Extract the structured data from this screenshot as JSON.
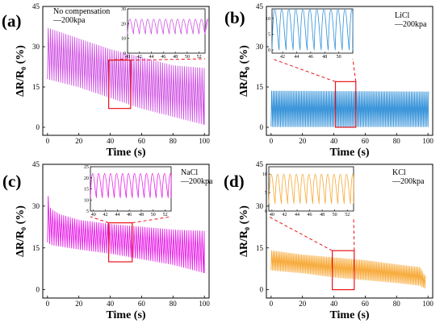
{
  "figure": {
    "panel_labels": [
      "(a)",
      "(b)",
      "(c)",
      "(d)"
    ],
    "xlabel": "Time (s)",
    "ylabel": "ΔR/R₀ (%)",
    "legends": [
      [
        "No compensation",
        "—200kpa"
      ],
      [
        "LiCl",
        "—200kpa"
      ],
      [
        "NaCl",
        "—200kpa"
      ],
      [
        "KCl",
        "—200kpa"
      ]
    ]
  },
  "chart_data": [
    {
      "type": "line",
      "label": "(a)",
      "xlabel": "Time (s)",
      "ylabel": "ΔR/R₀ (%)",
      "xlim": [
        -3,
        103
      ],
      "ylim": [
        -3,
        45
      ],
      "xticks": [
        0,
        20,
        40,
        60,
        80,
        100
      ],
      "yticks": [
        0,
        15,
        30,
        45
      ],
      "color": "#cf4fe3",
      "series": [
        {
          "name": "No compensation — 200kpa",
          "period_s": 1.4,
          "t_start": 0,
          "t_end": 100,
          "peak_profile": [
            [
              0,
              37
            ],
            [
              5,
              36
            ],
            [
              20,
              33
            ],
            [
              40,
              29
            ],
            [
              60,
              26
            ],
            [
              80,
              23
            ],
            [
              100,
              22
            ]
          ],
          "valley_profile": [
            [
              0,
              18
            ],
            [
              20,
              15
            ],
            [
              40,
              11
            ],
            [
              60,
              7
            ],
            [
              80,
              4
            ],
            [
              100,
              1
            ]
          ]
        }
      ],
      "inset": {
        "xlim": [
          40,
          53
        ],
        "ylim": [
          0,
          30
        ],
        "xticks": [
          40,
          42,
          44,
          46,
          48,
          50,
          52
        ],
        "yticks": [
          0,
          10,
          20,
          30
        ],
        "period_s": 1.0,
        "peak": 23,
        "valley": 13,
        "window": [
          40,
          53
        ]
      },
      "zoom_box": {
        "x": [
          39,
          53
        ],
        "y": [
          7,
          25
        ]
      }
    },
    {
      "type": "line",
      "label": "(b)",
      "xlabel": "Time (s)",
      "ylabel": "ΔR/R₀ (%)",
      "xlim": [
        -3,
        103
      ],
      "ylim": [
        -3,
        45
      ],
      "xticks": [
        0,
        20,
        40,
        60,
        80,
        100
      ],
      "yticks": [
        0,
        15,
        30,
        45
      ],
      "color": "#2f8fd8",
      "series": [
        {
          "name": "LiCl — 200kpa",
          "period_s": 1.0,
          "t_start": 0,
          "t_end": 100,
          "peak_profile": [
            [
              0,
              13.5
            ],
            [
              100,
              13.2
            ]
          ],
          "valley_profile": [
            [
              0,
              0.2
            ],
            [
              100,
              0.2
            ]
          ]
        }
      ],
      "inset": {
        "xlim": [
          40.5,
          52
        ],
        "ylim": [
          -1,
          13
        ],
        "xticks": [
          42,
          44,
          46,
          48,
          50
        ],
        "yticks": [
          0,
          5,
          10
        ],
        "period_s": 1.0,
        "peak": 13,
        "valley": 0,
        "window": [
          40.5,
          52
        ]
      },
      "zoom_box": {
        "x": [
          41,
          54
        ],
        "y": [
          0,
          17
        ]
      }
    },
    {
      "type": "line",
      "label": "(c)",
      "xlabel": "Time (s)",
      "ylabel": "ΔR/R₀ (%)",
      "xlim": [
        -3,
        103
      ],
      "ylim": [
        -3,
        45
      ],
      "xticks": [
        0,
        20,
        40,
        60,
        80,
        100
      ],
      "yticks": [
        0,
        15,
        30,
        45
      ],
      "color": "#e61ee6",
      "series": [
        {
          "name": "NaCl — 200kpa",
          "period_s": 1.4,
          "t_start": 0,
          "t_end": 100,
          "peak_profile": [
            [
              0,
              35
            ],
            [
              2,
              29
            ],
            [
              8,
              27
            ],
            [
              20,
              25
            ],
            [
              40,
              23.5
            ],
            [
              60,
              22.5
            ],
            [
              80,
              21.5
            ],
            [
              100,
              21
            ]
          ],
          "valley_profile": [
            [
              0,
              17
            ],
            [
              3,
              16
            ],
            [
              20,
              14.5
            ],
            [
              40,
              13
            ],
            [
              60,
              11
            ],
            [
              80,
              9
            ],
            [
              100,
              6
            ]
          ]
        }
      ],
      "inset": {
        "xlim": [
          39.5,
          53
        ],
        "ylim": [
          5,
          25
        ],
        "xticks": [
          40,
          42,
          44,
          46,
          48,
          50,
          52
        ],
        "yticks": [
          5,
          10,
          15,
          20,
          25
        ],
        "period_s": 1.0,
        "peak": 22,
        "valley": 11,
        "window": [
          39.5,
          53
        ]
      },
      "zoom_box": {
        "x": [
          39,
          54
        ],
        "y": [
          10,
          24
        ]
      }
    },
    {
      "type": "line",
      "label": "(d)",
      "xlabel": "Time (s)",
      "ylabel": "ΔR/R₀ (%)",
      "xlim": [
        -3,
        103
      ],
      "ylim": [
        -3,
        45
      ],
      "xticks": [
        0,
        20,
        40,
        60,
        80,
        100
      ],
      "yticks": [
        0,
        15,
        30,
        45
      ],
      "color": "#f7a733",
      "series": [
        {
          "name": "KCl — 200kpa",
          "period_s": 1.0,
          "t_start": 0,
          "t_end": 98,
          "peak_profile": [
            [
              0,
              14
            ],
            [
              20,
              12.5
            ],
            [
              40,
              11.5
            ],
            [
              60,
              10.5
            ],
            [
              80,
              9
            ],
            [
              95,
              8
            ],
            [
              98,
              5
            ]
          ],
          "valley_profile": [
            [
              0,
              7
            ],
            [
              20,
              6
            ],
            [
              40,
              4.5
            ],
            [
              60,
              3.5
            ],
            [
              80,
              2.5
            ],
            [
              95,
              1.5
            ],
            [
              98,
              0.5
            ]
          ]
        }
      ],
      "inset": {
        "xlim": [
          39.5,
          53
        ],
        "ylim": [
          0,
          12
        ],
        "xticks": [
          40,
          42,
          44,
          46,
          48,
          50,
          52
        ],
        "yticks": [
          0,
          5,
          10
        ],
        "period_s": 1.0,
        "peak": 10,
        "valley": 2,
        "window": [
          39.5,
          53
        ]
      },
      "zoom_box": {
        "x": [
          39,
          53
        ],
        "y": [
          0,
          14
        ]
      }
    }
  ]
}
